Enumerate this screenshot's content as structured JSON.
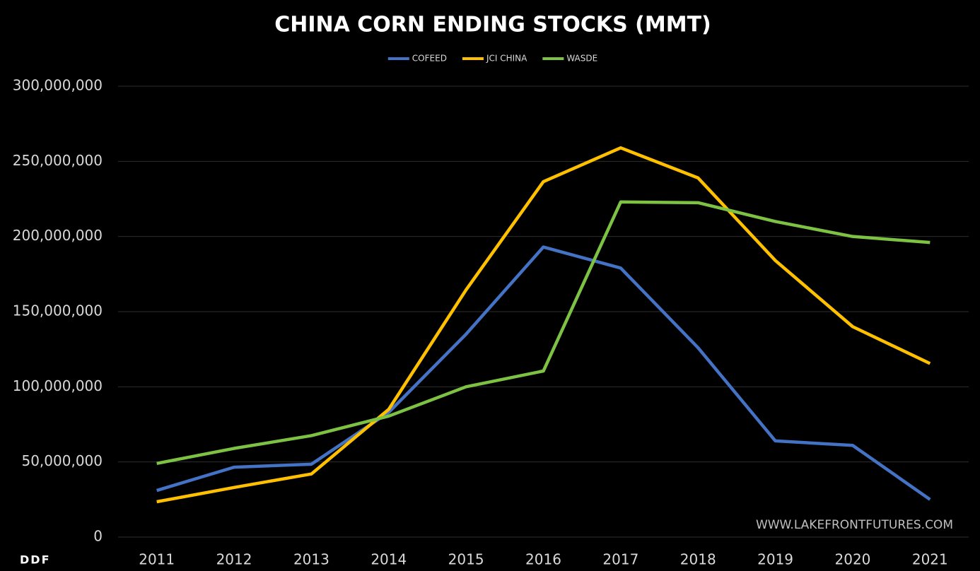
{
  "chart_data": {
    "type": "line",
    "title": "CHINA CORN ENDING STOCKS (MMT)",
    "annotations": [
      "WWW.LAKEFRONTFUTURES.COM",
      "DDF"
    ],
    "categories": [
      "2011",
      "2012",
      "2013",
      "2014",
      "2015",
      "2016",
      "2017",
      "2018",
      "2019",
      "2020",
      "2021"
    ],
    "series": [
      {
        "name": "COFEED",
        "color": "#4472c4",
        "values": [
          31000000,
          46500000,
          48500000,
          83000000,
          135000000,
          193000000,
          179000000,
          126000000,
          64000000,
          61000000,
          25000000
        ]
      },
      {
        "name": "JCI CHINA",
        "color": "#ffc000",
        "values": [
          23500000,
          33000000,
          42000000,
          85000000,
          164500000,
          236500000,
          259000000,
          239000000,
          184000000,
          140000000,
          115500000
        ]
      },
      {
        "name": "WASDE",
        "color": "#7dc243",
        "values": [
          49000000,
          59000000,
          67500000,
          80500000,
          100000000,
          110500000,
          223000000,
          222500000,
          210000000,
          200000000,
          196000000
        ]
      }
    ],
    "ylim": [
      0,
      300000000
    ],
    "yticks": [
      0,
      {
        "value": 50000000,
        "label": "50,000,000"
      },
      {
        "value": 100000000,
        "label": "100,000,000"
      },
      {
        "value": 150000000,
        "label": "150,000,000"
      },
      {
        "value": 200000000,
        "label": "200,000,000"
      },
      {
        "value": 250000000,
        "label": "250,000,000"
      },
      {
        "value": 300000000,
        "label": "300,000,000"
      }
    ],
    "grid": true,
    "legend": "top"
  }
}
